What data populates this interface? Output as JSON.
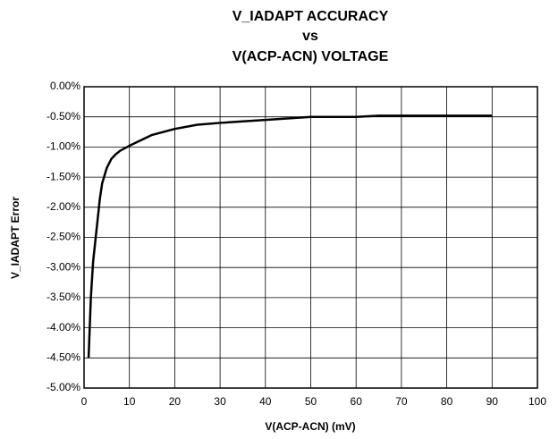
{
  "chart_data": {
    "type": "line",
    "title": [
      "V_IADAPT ACCURACY",
      "vs",
      "V(ACP-ACN) VOLTAGE"
    ],
    "xlabel": "V(ACP-ACN) (mV)",
    "ylabel": "V_IADAPT Error",
    "x": [
      1,
      1.5,
      2,
      3,
      3.5,
      4,
      5,
      6,
      7,
      8,
      10,
      15,
      20,
      25,
      30,
      40,
      50,
      60,
      65,
      70,
      80,
      90
    ],
    "series": [
      {
        "name": "V_IADAPT Error",
        "color": "#000000",
        "values": [
          -4.5,
          -3.5,
          -2.9,
          -2.2,
          -1.85,
          -1.6,
          -1.35,
          -1.2,
          -1.12,
          -1.06,
          -0.98,
          -0.8,
          -0.7,
          -0.63,
          -0.6,
          -0.55,
          -0.5,
          -0.5,
          -0.48,
          -0.48,
          -0.48,
          -0.48
        ]
      }
    ],
    "xlim": [
      0,
      100
    ],
    "xticks": [
      0,
      10,
      20,
      30,
      40,
      50,
      60,
      70,
      80,
      90,
      100
    ],
    "ylim": [
      -5,
      0
    ],
    "yticks": [
      {
        "value": 0,
        "label": "0.00%"
      },
      {
        "value": -0.5,
        "label": "-0.50%"
      },
      {
        "value": -1,
        "label": "-1.00%"
      },
      {
        "value": -1.5,
        "label": "-1.50%"
      },
      {
        "value": -2,
        "label": "-2.00%"
      },
      {
        "value": -2.5,
        "label": "-2.50%"
      },
      {
        "value": -3,
        "label": "-3.00%"
      },
      {
        "value": -3.5,
        "label": "-3.50%"
      },
      {
        "value": -4,
        "label": "-4.00%"
      },
      {
        "value": -4.5,
        "label": "-4.50%"
      },
      {
        "value": -5,
        "label": "-5.00%"
      }
    ],
    "grid": true
  }
}
